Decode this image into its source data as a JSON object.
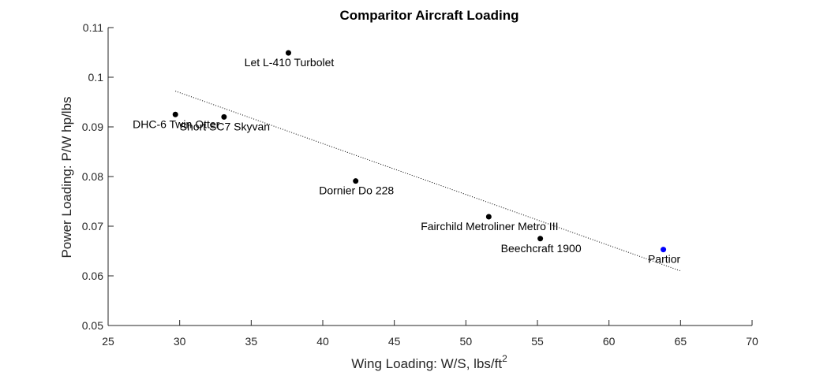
{
  "chart_data": {
    "type": "scatter",
    "title": "Comparitor Aircraft Loading",
    "xlabel": "Wing Loading: W/S, lbs/ft",
    "xlabel_sup": "2",
    "ylabel": "Power Loading: P/W hp/lbs",
    "xlim": [
      25,
      70
    ],
    "ylim": [
      0.05,
      0.11
    ],
    "xticks": [
      25,
      30,
      35,
      40,
      45,
      50,
      55,
      60,
      65,
      70
    ],
    "yticks": [
      0.05,
      0.06,
      0.07,
      0.08,
      0.09,
      0.1,
      0.11
    ],
    "ytick_labels": [
      "0.05",
      "0.06",
      "0.07",
      "0.08",
      "0.09",
      "0.1",
      "0.11"
    ],
    "grid": false,
    "points": [
      {
        "label": "Let L-410 Turbolet",
        "x": 37.6,
        "y": 0.1049,
        "color": "#000000"
      },
      {
        "label": "DHC-6 Twin Otter",
        "x": 29.7,
        "y": 0.0925,
        "color": "#000000"
      },
      {
        "label": "Short SC7 Skyvan",
        "x": 33.1,
        "y": 0.092,
        "color": "#000000"
      },
      {
        "label": "Dornier Do 228",
        "x": 42.3,
        "y": 0.0791,
        "color": "#000000"
      },
      {
        "label": "Fairchild Metroliner Metro III",
        "x": 51.6,
        "y": 0.0719,
        "color": "#000000"
      },
      {
        "label": "Beechcraft 1900",
        "x": 55.2,
        "y": 0.0675,
        "color": "#000000"
      },
      {
        "label": "Partior",
        "x": 63.8,
        "y": 0.0653,
        "color": "#0000ff"
      }
    ],
    "trendline": {
      "x": [
        29.7,
        65.0
      ],
      "y": [
        0.0972,
        0.061
      ]
    }
  }
}
